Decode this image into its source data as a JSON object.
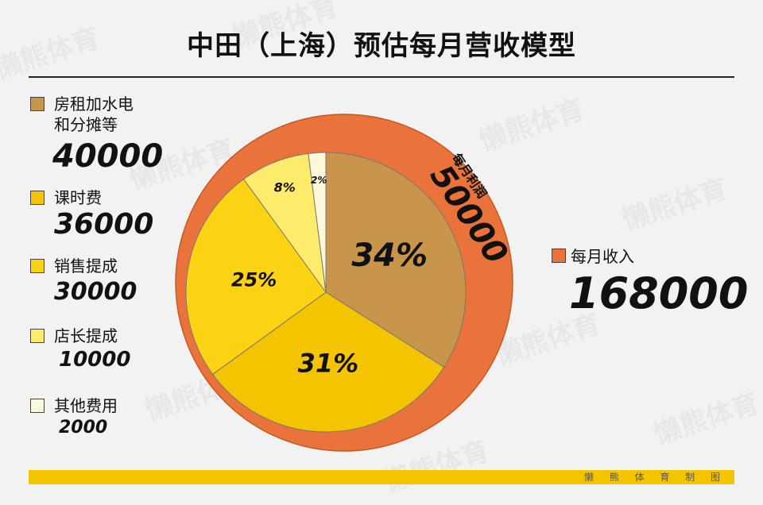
{
  "title": "中田（上海）预估每月营收模型",
  "watermark": "懒熊体育",
  "footer": "懒 熊 体 育 制 图",
  "colors": {
    "revenue": "#e9733a",
    "rent": "#c8954a",
    "tuition": "#f5c400",
    "sales": "#fbd313",
    "manager": "#fcec6a",
    "other": "#fdf8d8",
    "footer": "#f5c400"
  },
  "legend": [
    {
      "label": "房租加水电 和分摊等",
      "value": "40000",
      "color": "#c8954a"
    },
    {
      "label": "课时费",
      "value": "36000",
      "color": "#f5c400"
    },
    {
      "label": "销售提成",
      "value": "30000",
      "color": "#fbd313"
    },
    {
      "label": "店长提成",
      "value": "10000",
      "color": "#fcec6a"
    },
    {
      "label": "其他费用",
      "value": "2000",
      "color": "#fdf8d8"
    }
  ],
  "revenue": {
    "label": "每月收入",
    "value": "168000"
  },
  "profit": {
    "label": "每月利润",
    "value": "50000"
  },
  "chart_data": {
    "type": "pie",
    "outer": {
      "label": "每月收入",
      "value": 168000,
      "profit_label": "每月利润",
      "profit_value": 50000
    },
    "slices": [
      {
        "name": "房租加水电和分摊等",
        "value": 40000,
        "percent": 34,
        "percent_label": "34%",
        "color": "#c8954a"
      },
      {
        "name": "课时费",
        "value": 36000,
        "percent": 31,
        "percent_label": "31%",
        "color": "#f5c400"
      },
      {
        "name": "销售提成",
        "value": 30000,
        "percent": 25,
        "percent_label": "25%",
        "color": "#fbd313"
      },
      {
        "name": "店长提成",
        "value": 10000,
        "percent": 8,
        "percent_label": "8%",
        "color": "#fcec6a"
      },
      {
        "name": "其他费用",
        "value": 2000,
        "percent": 2,
        "percent_label": "2%",
        "color": "#fdf8d8"
      }
    ]
  }
}
